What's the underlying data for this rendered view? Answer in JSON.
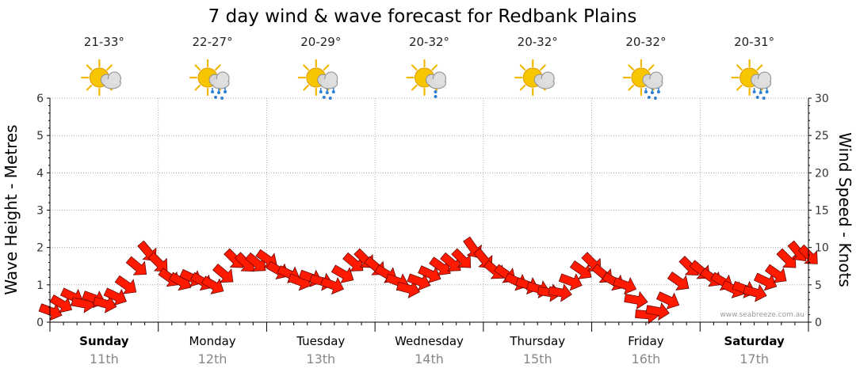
{
  "colors": {
    "arrow_fill": "#ff1a00",
    "arrow_stroke": "#5a0000",
    "grid": "#9a9a9a",
    "sun": "#f5c400",
    "cloud": "#c8c8c8",
    "rain": "#2a7fd4"
  },
  "chart_data": {
    "type": "line",
    "title": "7 day wind & wave forecast for Redbank Plains",
    "ylabel_left": "Wave Height - Metres",
    "ylabel_right": "Wind Speed - Knots",
    "ylim_left": [
      0,
      6
    ],
    "ylim_right": [
      0,
      30
    ],
    "yticks_left": [
      "0",
      "1",
      "2",
      "3",
      "4",
      "5",
      "6"
    ],
    "yticks_right": [
      "0",
      "5",
      "10",
      "15",
      "20",
      "25",
      "30"
    ],
    "grid": true,
    "watermark": "www.seabreeze.com.au",
    "days": [
      {
        "name": "Sunday",
        "date": "11th",
        "temp": "21-33°",
        "icon": "sun-cloud-icon",
        "bold": true
      },
      {
        "name": "Monday",
        "date": "12th",
        "temp": "22-27°",
        "icon": "sun-cloud-rain-icon",
        "bold": false
      },
      {
        "name": "Tuesday",
        "date": "13th",
        "temp": "20-29°",
        "icon": "sun-cloud-rain-icon",
        "bold": false
      },
      {
        "name": "Wednesday",
        "date": "14th",
        "temp": "20-32°",
        "icon": "sun-cloud-drizzle-icon",
        "bold": false
      },
      {
        "name": "Thursday",
        "date": "15th",
        "temp": "20-32°",
        "icon": "sun-cloud-icon",
        "bold": false
      },
      {
        "name": "Friday",
        "date": "16th",
        "temp": "20-32°",
        "icon": "sun-cloud-rain-icon",
        "bold": false
      },
      {
        "name": "Saturday",
        "date": "17th",
        "temp": "20-31°",
        "icon": "sun-cloud-rain-icon",
        "bold": true
      }
    ],
    "series": [
      {
        "name": "Wind Speed (knots)",
        "x": [
          0.0,
          0.1,
          0.2,
          0.3,
          0.4,
          0.5,
          0.6,
          0.7,
          0.8,
          0.9,
          1.0,
          1.1,
          1.2,
          1.3,
          1.4,
          1.5,
          1.6,
          1.7,
          1.8,
          1.9,
          2.0,
          2.1,
          2.2,
          2.3,
          2.4,
          2.5,
          2.6,
          2.7,
          2.8,
          2.9,
          3.0,
          3.1,
          3.2,
          3.3,
          3.4,
          3.5,
          3.6,
          3.7,
          3.8,
          3.9,
          4.0,
          4.1,
          4.2,
          4.3,
          4.4,
          4.5,
          4.6,
          4.7,
          4.8,
          4.9,
          5.0,
          5.1,
          5.2,
          5.3,
          5.4,
          5.5,
          5.6,
          5.7,
          5.8,
          5.9,
          6.0,
          6.1,
          6.2,
          6.3,
          6.4,
          6.5,
          6.6,
          6.7,
          6.8,
          6.9,
          7.0
        ],
        "values": [
          1.5,
          2.5,
          3.5,
          2.5,
          3.2,
          2.5,
          3.5,
          5,
          7.5,
          9.5,
          8,
          6,
          5.5,
          6,
          5.5,
          5,
          6.5,
          8.5,
          8,
          8,
          8.5,
          7,
          6.5,
          5.5,
          6,
          5.5,
          5,
          6.5,
          8,
          8.5,
          7.5,
          6.5,
          5.5,
          4.5,
          5.5,
          6.5,
          7.5,
          8,
          8.5,
          10,
          8.5,
          7,
          6.5,
          5.5,
          5,
          4.5,
          4,
          4,
          5.5,
          7,
          8,
          6.5,
          5.5,
          5,
          3,
          1,
          1.5,
          3,
          5.5,
          7.5,
          7,
          6,
          5.5,
          4.5,
          4.5,
          4,
          5.5,
          6.5,
          8.5,
          9.5,
          9
        ]
      }
    ],
    "wind_direction_deg": [
      110,
      120,
      115,
      100,
      110,
      105,
      115,
      125,
      130,
      140,
      135,
      125,
      120,
      115,
      120,
      120,
      130,
      135,
      135,
      130,
      125,
      120,
      115,
      110,
      110,
      105,
      110,
      120,
      130,
      135,
      130,
      120,
      110,
      105,
      110,
      115,
      125,
      130,
      135,
      145,
      140,
      130,
      125,
      115,
      110,
      105,
      100,
      100,
      110,
      125,
      135,
      130,
      120,
      110,
      100,
      95,
      100,
      115,
      125,
      135,
      130,
      125,
      120,
      115,
      110,
      105,
      115,
      125,
      135,
      140,
      135
    ]
  }
}
